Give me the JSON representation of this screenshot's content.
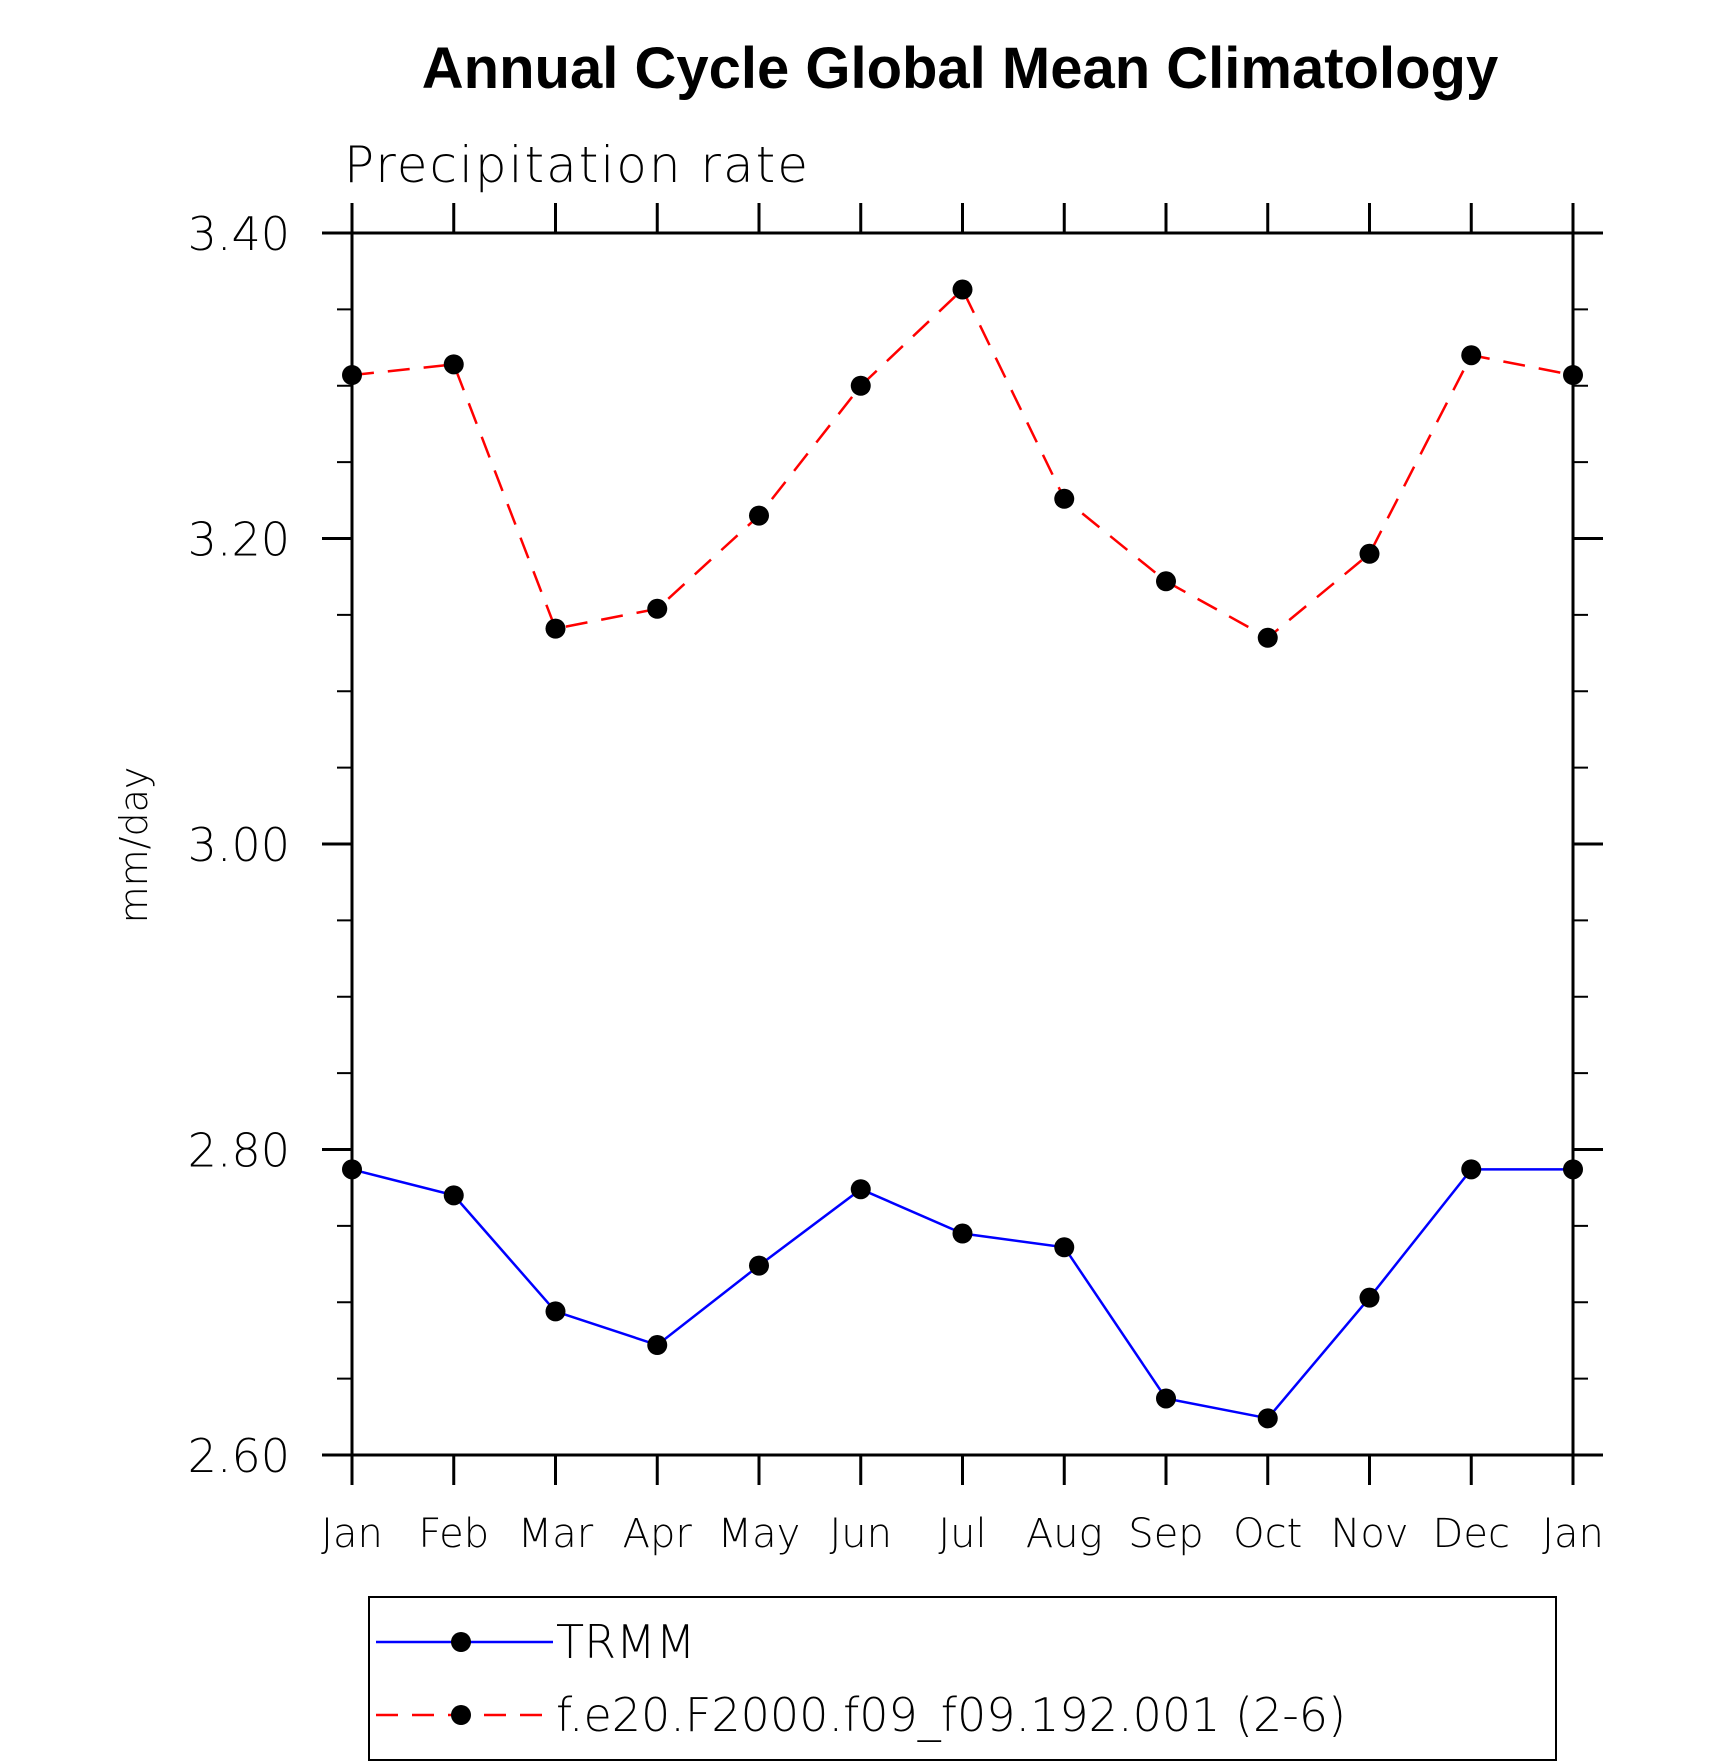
{
  "chart_data": {
    "type": "line",
    "title": "Annual Cycle Global Mean Climatology",
    "subtitle": "Precipitation rate",
    "ylabel": "mm/day",
    "xlabel": "",
    "categories": [
      "Jan",
      "Feb",
      "Mar",
      "Apr",
      "May",
      "Jun",
      "Jul",
      "Aug",
      "Sep",
      "Oct",
      "Nov",
      "Dec",
      "Jan"
    ],
    "ylim": [
      2.6,
      3.4
    ],
    "yticks": [
      "2.60",
      "2.80",
      "3.00",
      "3.20",
      "3.40"
    ],
    "y_minor_step": 0.05,
    "grid": false,
    "legend_position": "bottom",
    "series": [
      {
        "name": "TRMM",
        "color": "#0000ff",
        "line_style": "solid",
        "marker": "filled-circle",
        "marker_color": "#000000",
        "values": [
          2.787,
          2.77,
          2.694,
          2.672,
          2.724,
          2.774,
          2.745,
          2.736,
          2.637,
          2.624,
          2.703,
          2.787,
          2.787
        ]
      },
      {
        "name": "f.e20.F2000.f09_f09.192.001 (2-6)",
        "color": "#ff0000",
        "line_style": "dashed",
        "marker": "filled-circle",
        "marker_color": "#000000",
        "values": [
          3.307,
          3.314,
          3.141,
          3.154,
          3.215,
          3.3,
          3.363,
          3.226,
          3.172,
          3.135,
          3.19,
          3.32,
          3.307
        ]
      }
    ]
  }
}
